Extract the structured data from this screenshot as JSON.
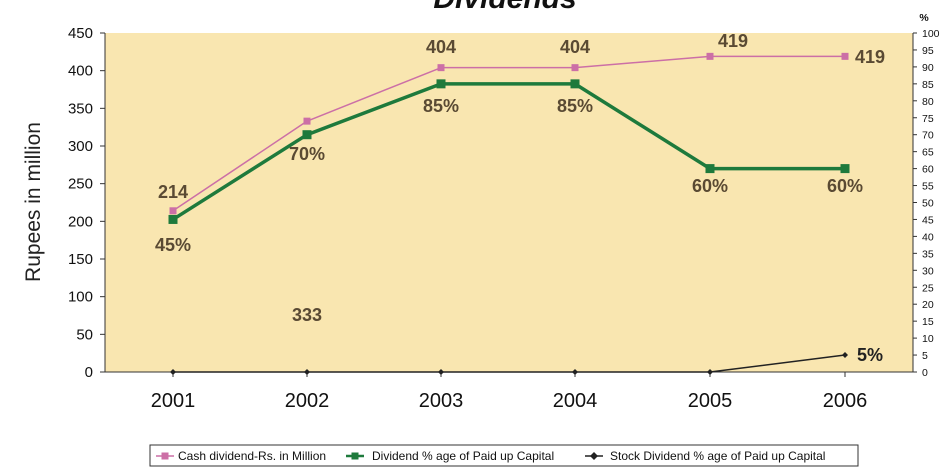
{
  "chart_data": {
    "type": "line",
    "title": "Dividends",
    "ylabel": "Rupees in million",
    "y2label": "%",
    "categories": [
      "2001",
      "2002",
      "2003",
      "2004",
      "2005",
      "2006"
    ],
    "ylim": [
      0,
      450
    ],
    "yticks": [
      0,
      50,
      100,
      150,
      200,
      250,
      300,
      350,
      400,
      450
    ],
    "y2lim": [
      0,
      100
    ],
    "y2ticks": [
      0,
      5,
      10,
      15,
      20,
      25,
      30,
      35,
      40,
      45,
      50,
      55,
      60,
      65,
      70,
      75,
      80,
      85,
      90,
      95,
      100
    ],
    "grid": false,
    "legend_position": "bottom",
    "plot_background": "#f9e6b0",
    "series": [
      {
        "name": "Cash dividend-Rs. in Million",
        "axis": "left",
        "color": "#cc6fa6",
        "values": [
          214,
          333,
          404,
          404,
          419,
          419
        ],
        "labels": [
          "214",
          "333",
          "404",
          "404",
          "419",
          "419"
        ]
      },
      {
        "name": "Dividend % age of Paid up Capital",
        "axis": "right",
        "color": "#1e7a3c",
        "values": [
          45,
          70,
          85,
          85,
          60,
          60
        ],
        "labels": [
          "45%",
          "70%",
          "85%",
          "85%",
          "60%",
          "60%"
        ]
      },
      {
        "name": "Stock Dividend % age of Paid up Capital",
        "axis": "right",
        "color": "#222222",
        "values": [
          0,
          0,
          0,
          0,
          0,
          5
        ],
        "labels": [
          "",
          "",
          "",
          "",
          "",
          "5%"
        ]
      }
    ]
  }
}
